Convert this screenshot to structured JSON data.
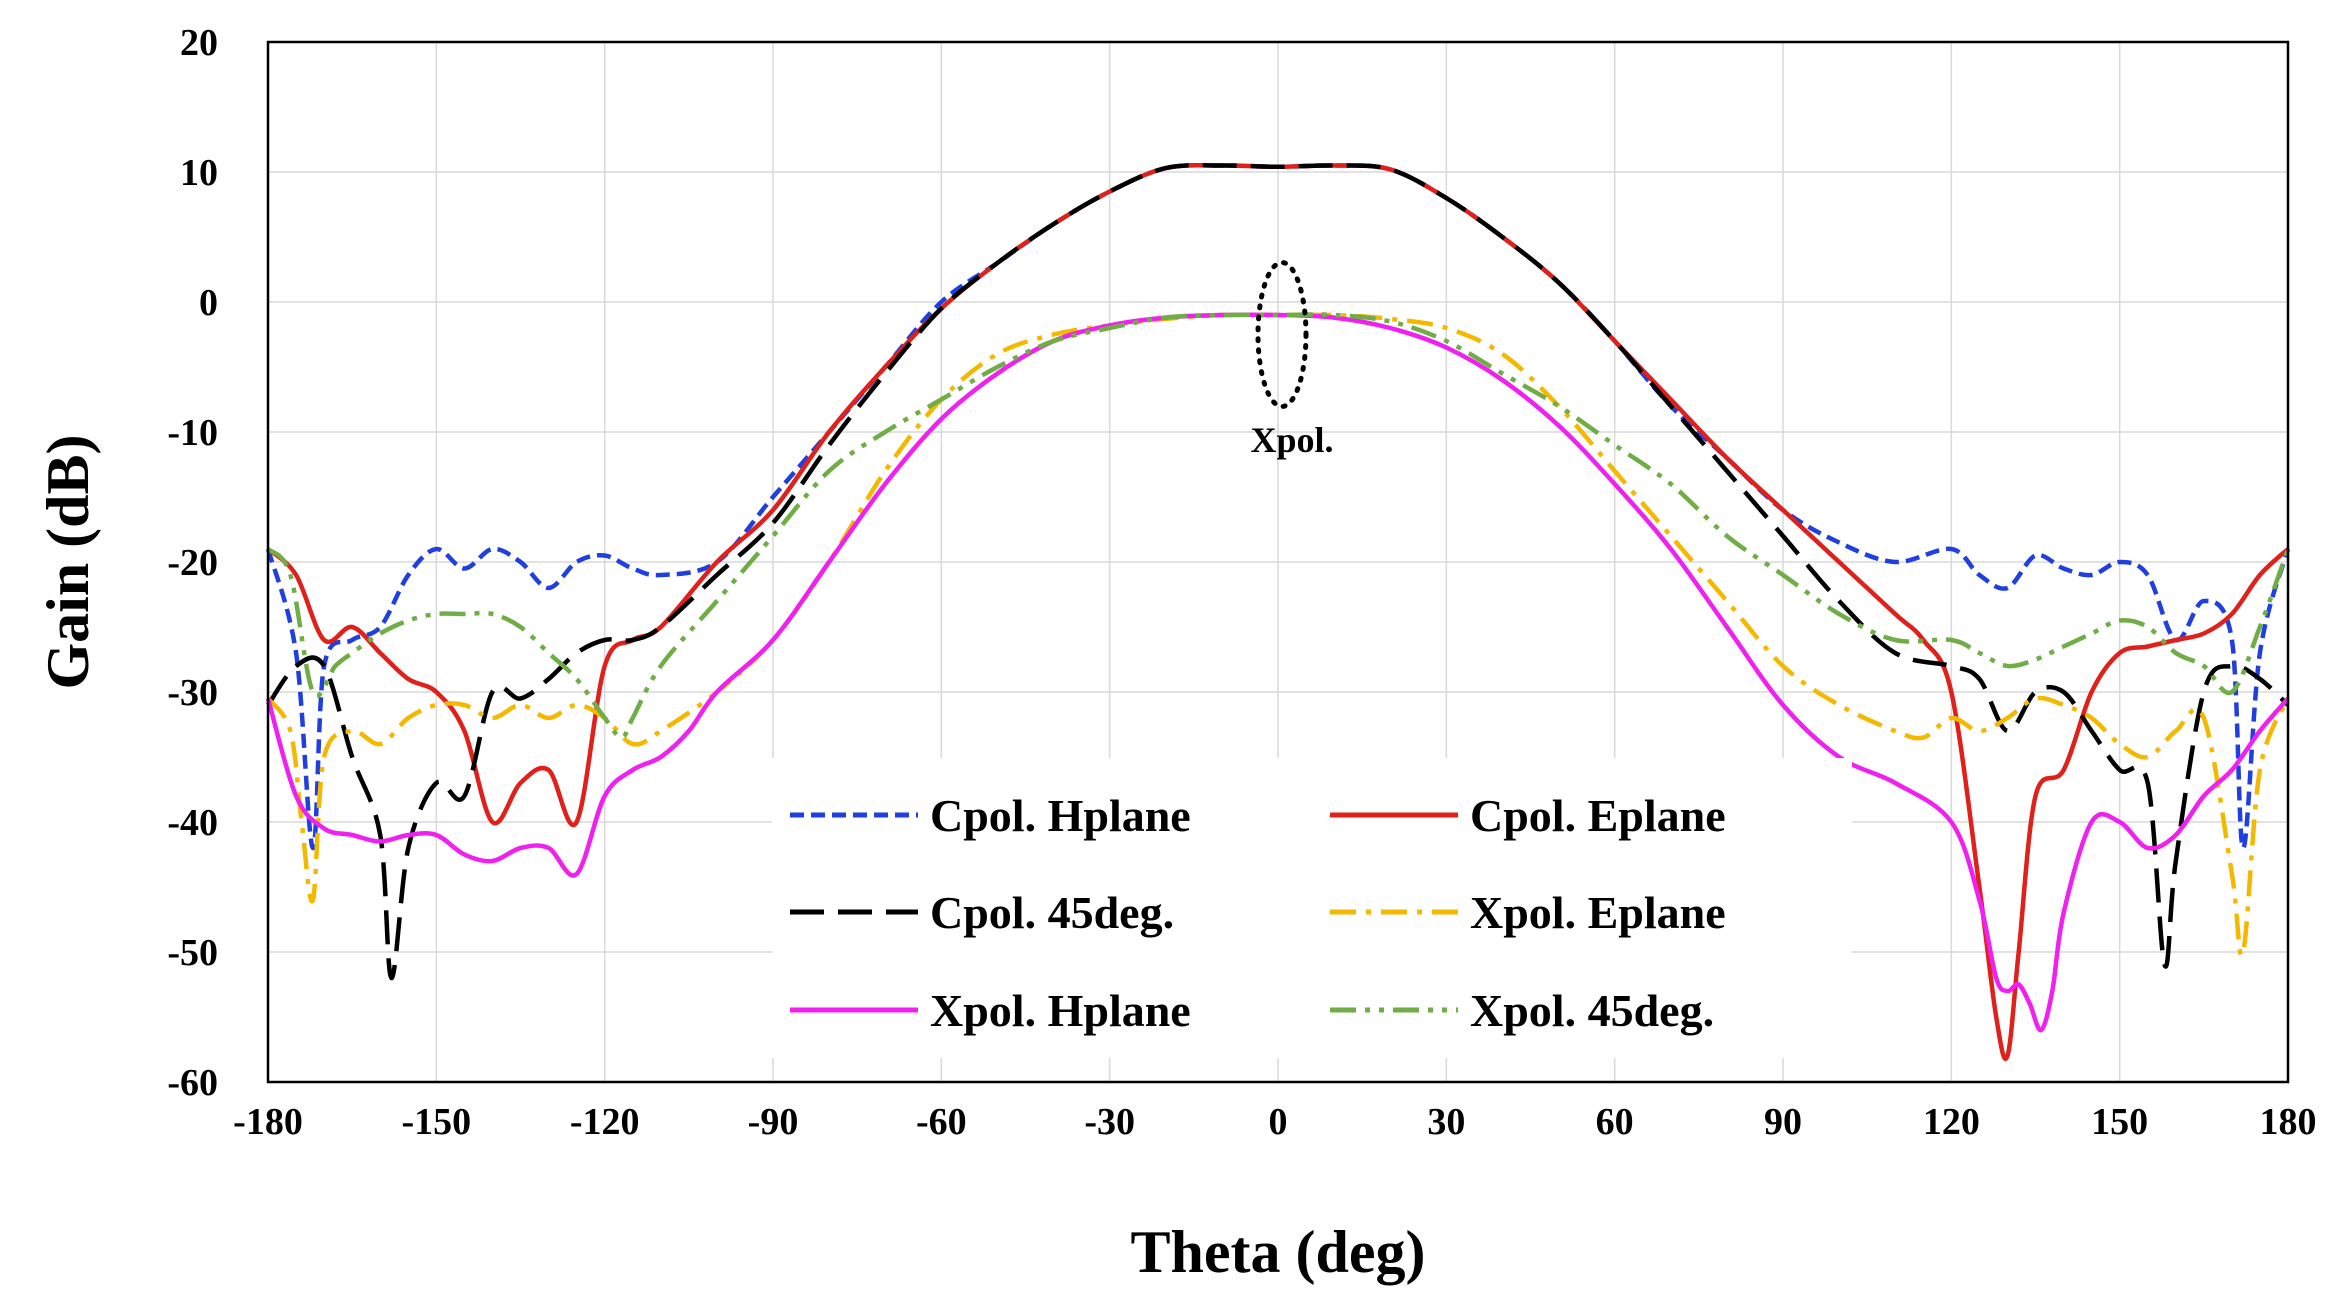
{
  "chart_data": {
    "type": "line",
    "title": "",
    "xlabel": "Theta (deg)",
    "ylabel": "Gain (dB)",
    "xlim": [
      -180,
      180
    ],
    "ylim": [
      -60,
      20
    ],
    "xticks": [
      -180,
      -150,
      -120,
      -90,
      -60,
      -30,
      0,
      30,
      60,
      90,
      120,
      150,
      180
    ],
    "yticks": [
      -60,
      -50,
      -40,
      -30,
      -20,
      -10,
      0,
      10,
      20
    ],
    "grid": true,
    "legend_position": "bottom-center inside plot",
    "annotation": {
      "text": "Xpol.",
      "target_x": 0,
      "target_y": -2.5
    },
    "series": [
      {
        "name": "Cpol. Hplane",
        "color": "#1f3fe0",
        "dash": "short-dash",
        "x": [
          -180,
          -175,
          -172,
          -170,
          -165,
          -160,
          -155,
          -150,
          -145,
          -140,
          -135,
          -130,
          -125,
          -120,
          -115,
          -110,
          -100,
          -90,
          -80,
          -70,
          -60,
          -50,
          -40,
          -30,
          -20,
          -10,
          0,
          10,
          20,
          30,
          40,
          50,
          60,
          70,
          80,
          90,
          100,
          110,
          120,
          125,
          130,
          135,
          140,
          145,
          150,
          155,
          160,
          165,
          170,
          172,
          175,
          180
        ],
        "y": [
          -19,
          -27,
          -42,
          -28,
          -26,
          -25,
          -21,
          -19,
          -20.5,
          -19,
          -20,
          -22,
          -20,
          -19.5,
          -20.5,
          -21,
          -20,
          -15,
          -10,
          -5,
          0,
          3,
          6,
          8.5,
          10.3,
          10.5,
          10.4,
          10.5,
          10.2,
          8,
          5,
          1.5,
          -3,
          -8,
          -12,
          -16,
          -18.5,
          -20,
          -19,
          -21,
          -22,
          -19.5,
          -20.5,
          -21,
          -20,
          -21,
          -26,
          -23,
          -26,
          -42,
          -27,
          -19
        ]
      },
      {
        "name": "Cpol. Eplane",
        "color": "#e0201a",
        "dash": "solid",
        "x": [
          -180,
          -175,
          -170,
          -165,
          -160,
          -155,
          -150,
          -145,
          -140,
          -135,
          -130,
          -125,
          -120,
          -115,
          -110,
          -100,
          -90,
          -80,
          -70,
          -60,
          -50,
          -40,
          -30,
          -20,
          -10,
          0,
          10,
          20,
          30,
          40,
          50,
          60,
          70,
          80,
          90,
          100,
          110,
          115,
          120,
          125,
          128,
          130,
          132,
          135,
          140,
          145,
          150,
          155,
          160,
          165,
          170,
          175,
          180
        ],
        "y": [
          -19,
          -21,
          -26,
          -25,
          -27,
          -29,
          -30,
          -33,
          -40,
          -37,
          -36,
          -40,
          -28,
          -26,
          -25,
          -20,
          -16,
          -10,
          -5,
          -0.5,
          3,
          6,
          8.5,
          10.3,
          10.5,
          10.4,
          10.5,
          10.2,
          8,
          5,
          1.5,
          -3,
          -7.5,
          -12,
          -16,
          -20,
          -24,
          -26,
          -30,
          -45,
          -55,
          -58,
          -50,
          -38,
          -36,
          -30,
          -27,
          -26.5,
          -26,
          -25.5,
          -24,
          -21,
          -19
        ]
      },
      {
        "name": "Cpol. 45deg.",
        "color": "#000000",
        "dash": "long-dash",
        "x": [
          -180,
          -175,
          -170,
          -165,
          -160,
          -158,
          -155,
          -150,
          -145,
          -140,
          -135,
          -130,
          -125,
          -120,
          -115,
          -110,
          -100,
          -90,
          -80,
          -70,
          -60,
          -50,
          -40,
          -30,
          -20,
          -10,
          0,
          10,
          20,
          30,
          40,
          50,
          60,
          70,
          80,
          90,
          100,
          110,
          120,
          125,
          130,
          135,
          140,
          145,
          150,
          155,
          158,
          160,
          165,
          170,
          175,
          180
        ],
        "y": [
          -31,
          -28,
          -28,
          -35,
          -41,
          -52,
          -42,
          -37,
          -38,
          -30,
          -30.5,
          -29,
          -27,
          -26,
          -26,
          -25,
          -21,
          -17,
          -11,
          -5.5,
          -0.5,
          3,
          6,
          8.5,
          10.3,
          10.5,
          10.4,
          10.5,
          10.2,
          8,
          5,
          1.5,
          -3,
          -8,
          -13,
          -18,
          -23,
          -27,
          -28,
          -29,
          -33,
          -30,
          -30,
          -33,
          -36,
          -37,
          -51,
          -43,
          -30,
          -28,
          -29,
          -31
        ]
      },
      {
        "name": "Xpol. Eplane",
        "color": "#f5b800",
        "dash": "dash-dot",
        "x": [
          -180,
          -176,
          -174,
          -172,
          -170,
          -165,
          -160,
          -155,
          -150,
          -145,
          -140,
          -135,
          -130,
          -125,
          -120,
          -115,
          -110,
          -100,
          -90,
          -80,
          -70,
          -60,
          -50,
          -40,
          -30,
          -20,
          -10,
          0,
          10,
          20,
          30,
          40,
          50,
          60,
          70,
          80,
          90,
          100,
          110,
          115,
          120,
          125,
          130,
          135,
          140,
          145,
          150,
          155,
          160,
          165,
          170,
          172,
          175,
          180
        ],
        "y": [
          -30.5,
          -33,
          -40,
          -46,
          -35,
          -33,
          -34,
          -32,
          -31,
          -31,
          -32,
          -31,
          -32,
          -31,
          -32,
          -34,
          -33,
          -30,
          -26,
          -20,
          -13,
          -7.5,
          -4,
          -2.5,
          -1.8,
          -1.3,
          -1,
          -1,
          -1,
          -1.3,
          -2,
          -4,
          -8,
          -13,
          -18,
          -23,
          -28,
          -31,
          -33,
          -33.5,
          -32,
          -33,
          -32,
          -30.5,
          -31,
          -32,
          -34,
          -35,
          -33,
          -32,
          -44,
          -50,
          -36,
          -30.5
        ]
      },
      {
        "name": "Xpol. Hplane",
        "color": "#f020f0",
        "dash": "solid",
        "x": [
          -180,
          -175,
          -170,
          -165,
          -160,
          -155,
          -150,
          -145,
          -140,
          -135,
          -130,
          -125,
          -120,
          -115,
          -110,
          -105,
          -100,
          -90,
          -80,
          -70,
          -60,
          -50,
          -40,
          -30,
          -20,
          -10,
          0,
          10,
          20,
          30,
          40,
          50,
          60,
          70,
          80,
          90,
          100,
          110,
          120,
          125,
          128,
          130,
          132,
          134,
          136,
          138,
          140,
          145,
          150,
          155,
          160,
          165,
          170,
          175,
          180
        ],
        "y": [
          -30.5,
          -38,
          -40.5,
          -41,
          -41.5,
          -41,
          -41,
          -42.5,
          -43,
          -42,
          -42,
          -44,
          -38,
          -36,
          -35,
          -33,
          -30,
          -26,
          -20,
          -14,
          -9,
          -5.5,
          -3,
          -1.8,
          -1.2,
          -1,
          -1,
          -1.2,
          -2,
          -3.5,
          -6,
          -9.5,
          -14,
          -19,
          -25,
          -31,
          -35,
          -37,
          -40,
          -46,
          -52,
          -53,
          -52.5,
          -54,
          -56,
          -53,
          -47,
          -40,
          -40,
          -42,
          -41,
          -38,
          -36,
          -33,
          -30.5
        ]
      },
      {
        "name": "Xpol. 45deg.",
        "color": "#70ad47",
        "dash": "dash-dot-dot",
        "x": [
          -180,
          -176,
          -172,
          -168,
          -165,
          -160,
          -155,
          -150,
          -145,
          -140,
          -135,
          -130,
          -125,
          -120,
          -117,
          -115,
          -110,
          -100,
          -90,
          -80,
          -70,
          -60,
          -50,
          -40,
          -30,
          -20,
          -10,
          0,
          10,
          20,
          30,
          40,
          50,
          60,
          70,
          80,
          90,
          100,
          110,
          120,
          125,
          130,
          135,
          140,
          145,
          150,
          155,
          160,
          165,
          170,
          175,
          180
        ],
        "y": [
          -19,
          -21,
          -30,
          -28,
          -27,
          -25.5,
          -24.5,
          -24,
          -24,
          -24,
          -25,
          -27,
          -29,
          -32,
          -33.5,
          -32,
          -28,
          -23,
          -18,
          -13,
          -10,
          -7.5,
          -5,
          -3,
          -2,
          -1.2,
          -1,
          -1,
          -1,
          -1.5,
          -3,
          -5.5,
          -8,
          -11,
          -14,
          -18,
          -21,
          -24,
          -26,
          -26,
          -27,
          -28,
          -27.5,
          -26.5,
          -25.5,
          -24.5,
          -25,
          -27,
          -28,
          -30,
          -25,
          -19
        ]
      }
    ]
  }
}
